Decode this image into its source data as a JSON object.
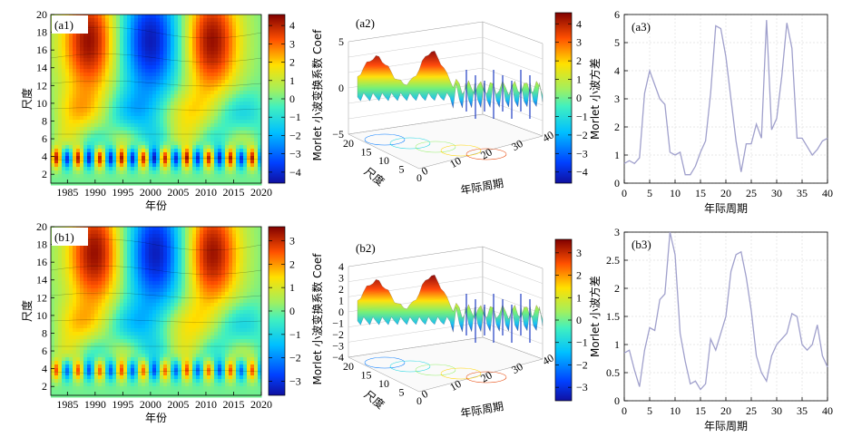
{
  "panels": {
    "a1": {
      "label": "(a1)",
      "xlabel": "年份",
      "ylabel": "尺度"
    },
    "a2": {
      "label": "(a2)",
      "zlabel": "Morlet 小波变换系数 Coef",
      "xlabel": "尺度",
      "ylabel": "年际周期"
    },
    "a3": {
      "label": "(a3)",
      "ylabel": "Morlet 小波方差",
      "xlabel": "年际周期"
    },
    "b1": {
      "label": "(b1)",
      "xlabel": "年份",
      "ylabel": "尺度"
    },
    "b2": {
      "label": "(b2)",
      "zlabel": "Morlet 小波变换系数 Coef",
      "xlabel": "尺度",
      "ylabel": "年际周期"
    },
    "b3": {
      "label": "(b3)",
      "ylabel": "Morlet 小波方差",
      "xlabel": "年际周期"
    }
  },
  "colors": {
    "scale_low": "#1a1aa8",
    "scale_mid": "#80f080",
    "scale_high": "#8a0000",
    "variance_line": "#a0a0cc",
    "grid": "#dddddd"
  },
  "chart_data": [
    {
      "id": "a1",
      "type": "heatmap",
      "xlabel": "年份",
      "ylabel": "尺度",
      "xlim": [
        1982,
        2020
      ],
      "ylim": [
        1,
        20
      ],
      "xticks": [
        1985,
        1990,
        1995,
        2000,
        2005,
        2010,
        2015,
        2020
      ],
      "yticks": [
        2,
        4,
        6,
        8,
        10,
        12,
        14,
        16,
        18,
        20
      ],
      "colorbar": {
        "ticks": [
          -4,
          -3,
          -2,
          -1,
          0,
          1,
          2,
          3,
          4
        ],
        "range": [
          -4.6,
          4.6
        ]
      },
      "high_centers_year": [
        1989,
        2011
      ],
      "low_centers_year": [
        2000
      ],
      "center_scale": 17
    },
    {
      "id": "a2",
      "type": "surface",
      "zlabel": "Morlet 小波变换系数 Coef",
      "xlabel": "尺度",
      "ylabel": "年际周期",
      "zticks": [
        -5,
        0,
        5
      ],
      "xticks": [
        0,
        5,
        10,
        15,
        20
      ],
      "yticks": [
        0,
        10,
        20,
        30,
        40
      ],
      "colorbar": {
        "ticks": [
          -4,
          -3,
          -2,
          -1,
          0,
          1,
          2,
          3,
          4
        ],
        "range": [
          -4.6,
          4.6
        ]
      }
    },
    {
      "id": "a3",
      "type": "line",
      "xlabel": "年际周期",
      "ylabel": "Morlet 小波方差",
      "xlim": [
        0,
        40
      ],
      "ylim": [
        0,
        6
      ],
      "xticks": [
        0,
        5,
        10,
        15,
        20,
        25,
        30,
        35,
        40
      ],
      "yticks": [
        0,
        1,
        2,
        3,
        4,
        5,
        6
      ],
      "x": [
        0,
        1,
        2,
        3,
        4,
        5,
        6,
        7,
        8,
        9,
        10,
        11,
        12,
        13,
        14,
        15,
        16,
        17,
        18,
        19,
        20,
        21,
        22,
        23,
        24,
        25,
        26,
        27,
        28,
        29,
        30,
        31,
        32,
        33,
        34,
        35,
        36,
        37,
        38,
        39,
        40
      ],
      "y": [
        0.7,
        0.8,
        0.7,
        0.9,
        3.2,
        4.0,
        3.5,
        3.0,
        2.8,
        1.1,
        1.0,
        1.1,
        0.3,
        0.3,
        0.6,
        1.1,
        1.5,
        3.2,
        5.6,
        5.5,
        4.5,
        3.0,
        1.5,
        0.4,
        1.4,
        1.4,
        2.1,
        1.6,
        5.8,
        1.9,
        2.3,
        3.8,
        5.7,
        4.8,
        1.6,
        1.6,
        1.3,
        1.0,
        1.2,
        1.5,
        1.6
      ]
    },
    {
      "id": "b1",
      "type": "heatmap",
      "xlabel": "年份",
      "ylabel": "尺度",
      "xlim": [
        1982,
        2020
      ],
      "ylim": [
        1,
        20
      ],
      "xticks": [
        1985,
        1990,
        1995,
        2000,
        2005,
        2010,
        2015,
        2020
      ],
      "yticks": [
        2,
        4,
        6,
        8,
        10,
        12,
        14,
        16,
        18,
        20
      ],
      "colorbar": {
        "ticks": [
          -3,
          -2,
          -1,
          0,
          1,
          2,
          3
        ],
        "range": [
          -3.6,
          3.6
        ]
      },
      "high_centers_year": [
        1990,
        2011
      ],
      "low_centers_year": [
        2001
      ],
      "center_scale": 17
    },
    {
      "id": "b2",
      "type": "surface",
      "zlabel": "Morlet 小波变换系数 Coef",
      "xlabel": "尺度",
      "ylabel": "年际周期",
      "zticks": [
        -4,
        -3,
        -2,
        -1,
        0,
        1,
        2,
        3,
        4
      ],
      "xticks": [
        0,
        5,
        10,
        15,
        20
      ],
      "yticks": [
        0,
        10,
        20,
        30,
        40
      ],
      "colorbar": {
        "ticks": [
          -3,
          -2,
          -1,
          0,
          1,
          2,
          3
        ],
        "range": [
          -3.6,
          3.6
        ]
      }
    },
    {
      "id": "b3",
      "type": "line",
      "xlabel": "年际周期",
      "ylabel": "Morlet 小波方差",
      "xlim": [
        0,
        40
      ],
      "ylim": [
        0,
        3
      ],
      "xticks": [
        0,
        5,
        10,
        15,
        20,
        25,
        30,
        35,
        40
      ],
      "yticks": [
        0,
        0.5,
        1,
        1.5,
        2,
        2.5,
        3
      ],
      "x": [
        0,
        1,
        2,
        3,
        4,
        5,
        6,
        7,
        8,
        9,
        10,
        11,
        12,
        13,
        14,
        15,
        16,
        17,
        18,
        19,
        20,
        21,
        22,
        23,
        24,
        25,
        26,
        27,
        28,
        29,
        30,
        31,
        32,
        33,
        34,
        35,
        36,
        37,
        38,
        39,
        40
      ],
      "y": [
        0.85,
        0.9,
        0.55,
        0.25,
        0.9,
        1.3,
        1.25,
        1.8,
        1.9,
        3.0,
        2.6,
        1.2,
        0.7,
        0.3,
        0.35,
        0.2,
        0.3,
        1.1,
        0.9,
        1.2,
        1.5,
        2.3,
        2.6,
        2.65,
        2.2,
        1.6,
        0.8,
        0.5,
        0.35,
        0.8,
        1.0,
        1.1,
        1.2,
        1.55,
        1.5,
        1.0,
        0.9,
        1.0,
        1.35,
        0.8,
        0.6
      ]
    }
  ]
}
